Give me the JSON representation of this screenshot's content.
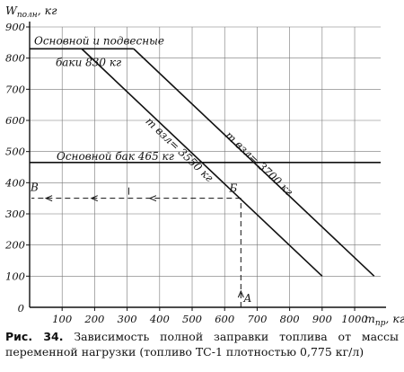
{
  "chart_data": {
    "type": "line",
    "xlabel": "m",
    "xlabel_sub": "пр",
    "xunit": ", кг",
    "ylabel": "W",
    "ylabel_sub": "полн",
    "yunit": ", кг",
    "xlim": [
      0,
      1080
    ],
    "ylim": [
      0,
      900
    ],
    "x_ticks": [
      100,
      200,
      300,
      400,
      500,
      600,
      700,
      800,
      900,
      1000
    ],
    "y_ticks": [
      100,
      200,
      300,
      400,
      500,
      600,
      700,
      800,
      900
    ],
    "x_tick_labels": [
      "100",
      "200",
      "300",
      "400",
      "500",
      "600",
      "700",
      "800",
      "900",
      "1000"
    ],
    "y_tick_labels": [
      "100",
      "200",
      "300",
      "400",
      "500",
      "600",
      "700",
      "800",
      "900"
    ],
    "zero_label": "0",
    "grid": true,
    "series": [
      {
        "key": "w3550",
        "points": [
          [
            160,
            830
          ],
          [
            900,
            100
          ]
        ]
      },
      {
        "key": "w3700",
        "points": [
          [
            320,
            830
          ],
          [
            1060,
            100
          ]
        ]
      }
    ],
    "horizontal_lines": [
      {
        "key": "main_aux",
        "y": 830,
        "x_end": 320
      },
      {
        "key": "main",
        "y": 465,
        "x_end": 1080
      }
    ],
    "annotations": {
      "main_aux_1": "Основной и подвесные",
      "main_aux_2": "баки  830 кг",
      "main_tank": "Основной бак 465 кг",
      "curve_3550": "m взл= 3550 кг",
      "curve_3700": "m взл= 3700 кг"
    },
    "example": {
      "point_a": {
        "label": "А",
        "x": 650,
        "y": 0
      },
      "point_b": {
        "label": "Б",
        "x": 650,
        "y": 350
      },
      "point_v": {
        "label": "В",
        "x": 0,
        "y": 350
      }
    }
  },
  "caption": {
    "number": "Рис. 34.",
    "text": "Зависимость полной заправки топлива от массы переменной нагрузки (топливо ТС-1 плотностью 0,775 кг/л)"
  }
}
